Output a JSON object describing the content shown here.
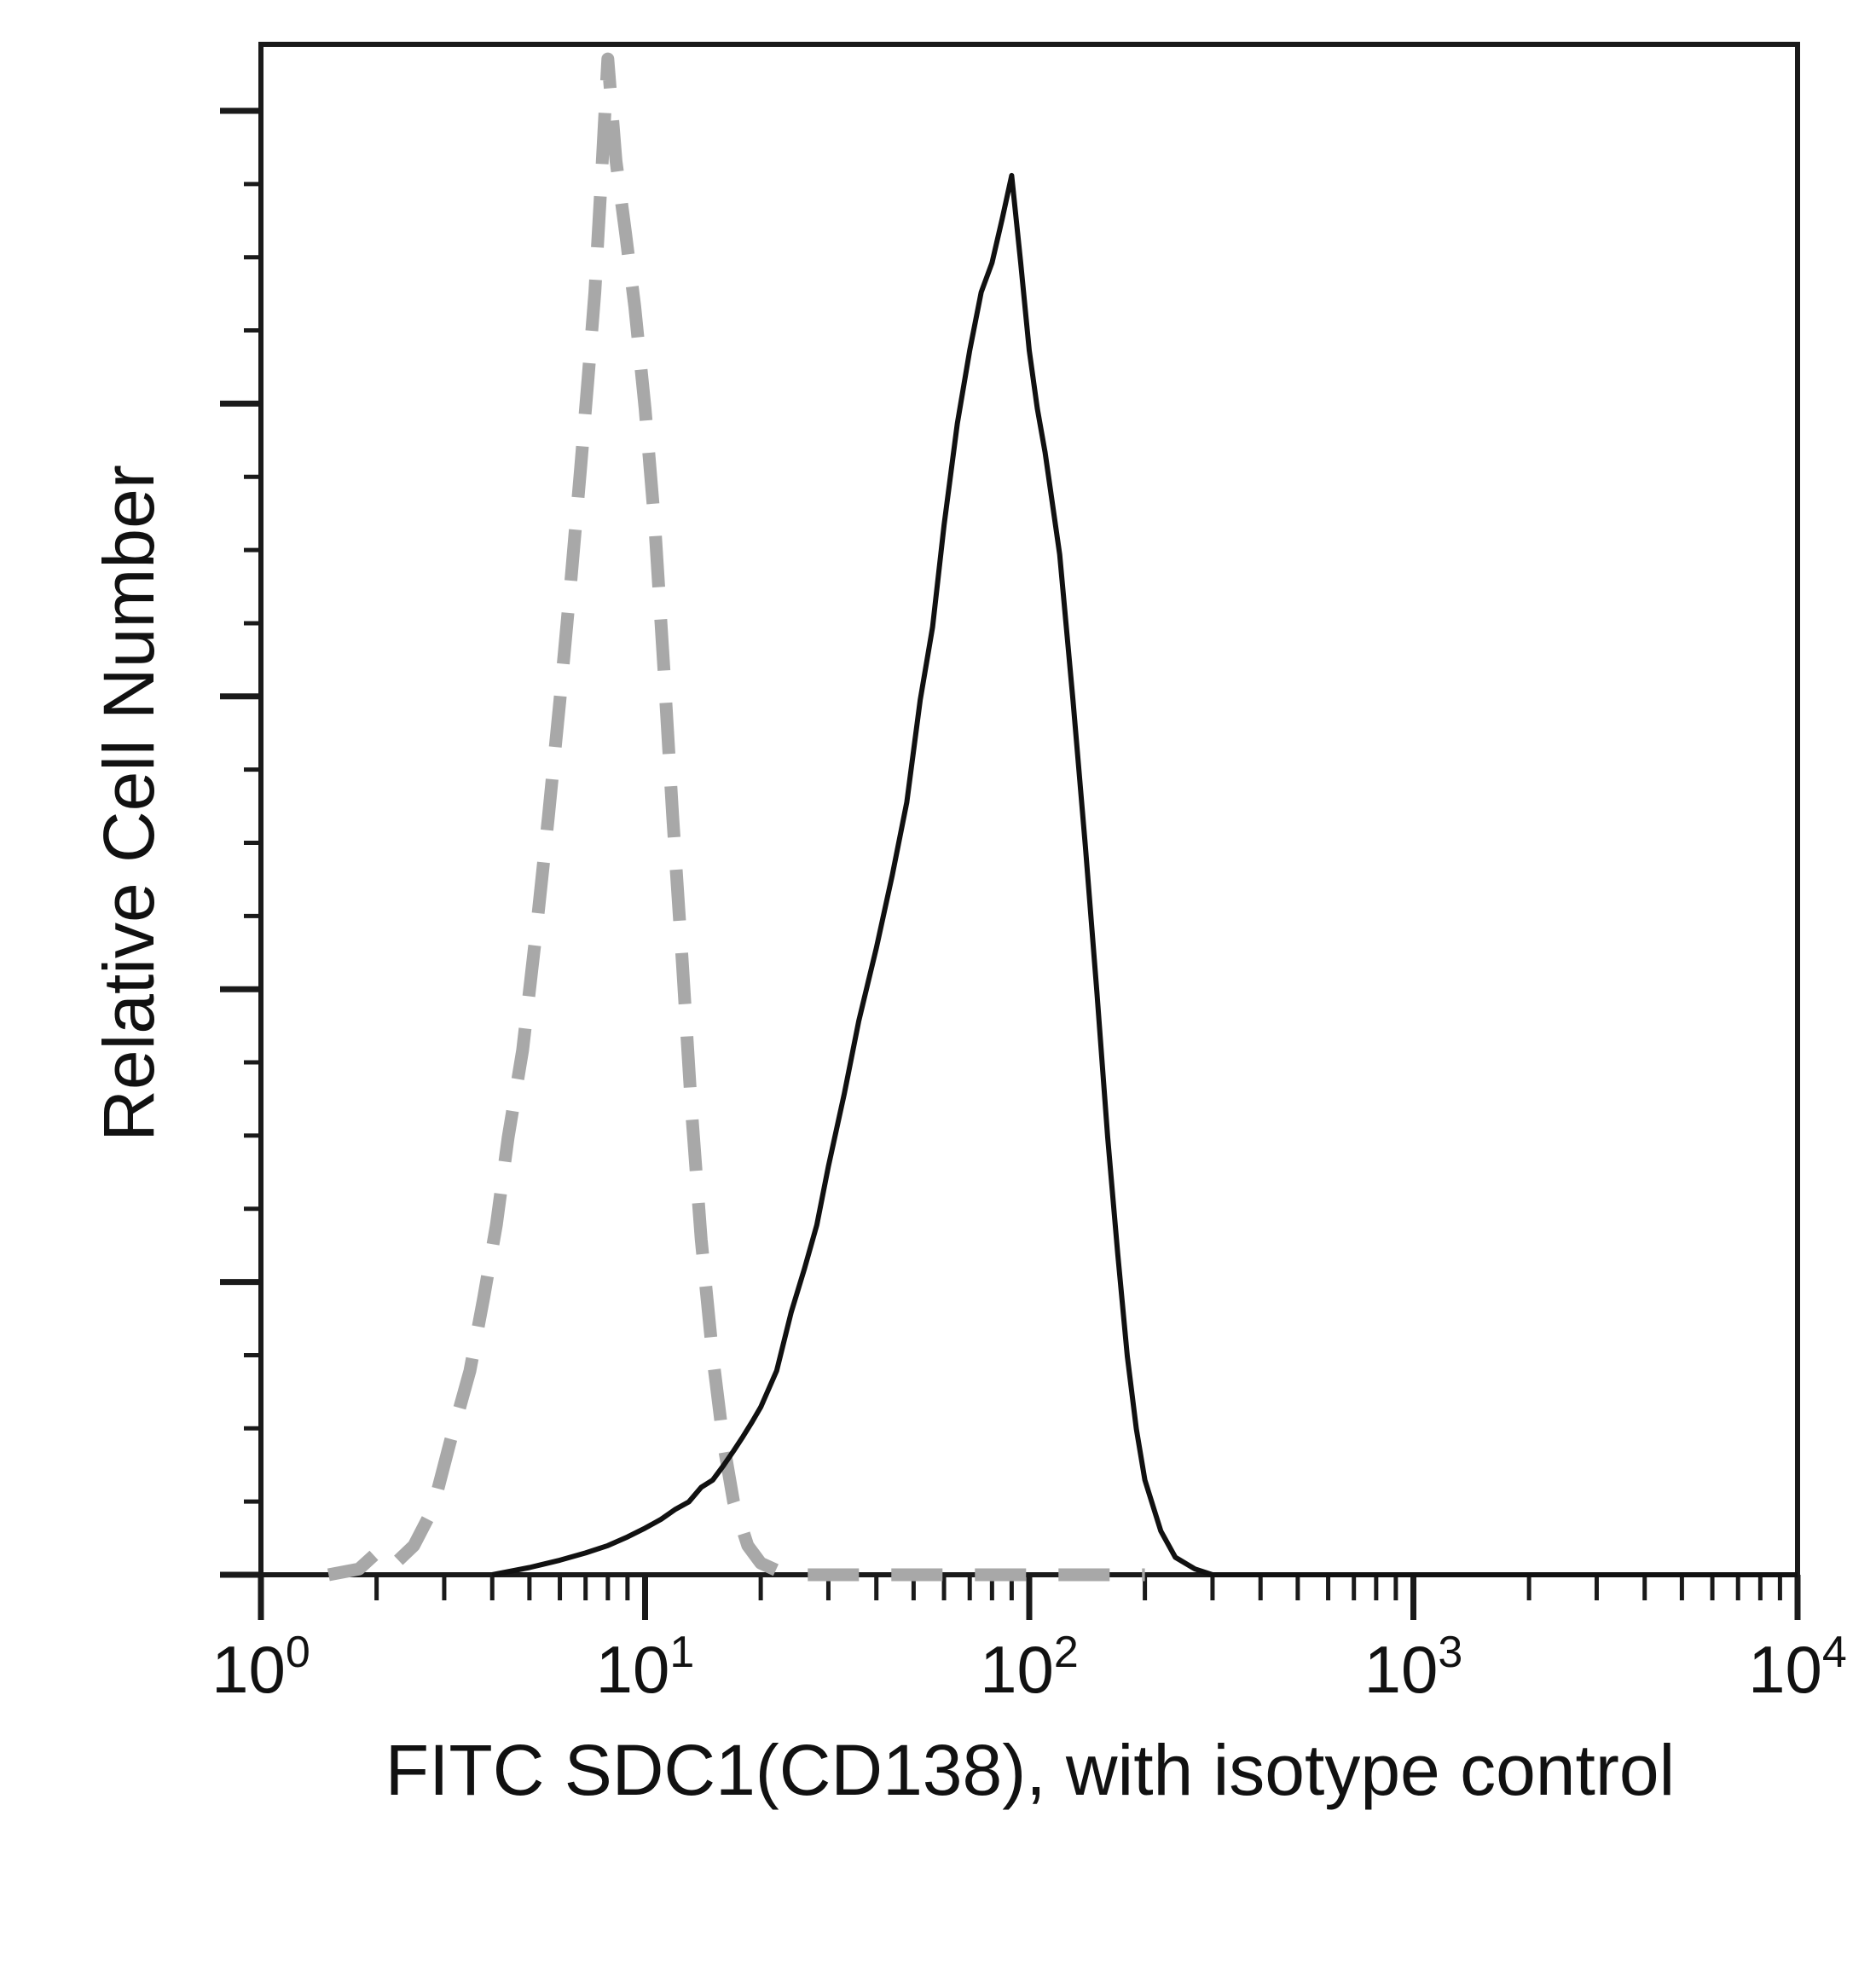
{
  "chart_data": {
    "type": "line",
    "title": "",
    "xlabel": "FITC SDC1(CD138), with isotype control",
    "ylabel": "Relative Cell Number",
    "x_scale": "log",
    "xlim": [
      1,
      10000
    ],
    "ylim": [
      0,
      1.05
    ],
    "y_tick_labels": "none",
    "x_ticks": [
      {
        "value": 1,
        "base": "10",
        "exp": "0"
      },
      {
        "value": 10,
        "base": "10",
        "exp": "1"
      },
      {
        "value": 100,
        "base": "10",
        "exp": "2"
      },
      {
        "value": 1000,
        "base": "10",
        "exp": "3"
      },
      {
        "value": 10000,
        "base": "10",
        "exp": "4"
      }
    ],
    "grid": false,
    "legend": "none",
    "series": [
      {
        "role": "isotype-control",
        "style": "dashed",
        "color": "#a8a8a8",
        "x": [
          1.5,
          1.8,
          2.0,
          2.2,
          2.5,
          2.8,
          3.1,
          3.5,
          3.8,
          4.1,
          4.4,
          4.8,
          5.2,
          5.6,
          6.0,
          6.4,
          6.8,
          7.1,
          7.4,
          7.7,
          8.0,
          8.4,
          8.9,
          9.4,
          10.0,
          10.6,
          11.2,
          11.8,
          12.5,
          13.2,
          14.0,
          15.0,
          16.0,
          17.0,
          18.5,
          20.0,
          22.0,
          25.0,
          30.0,
          50.0,
          100.0,
          200.0
        ],
        "y": [
          0.0,
          0.004,
          0.015,
          0.006,
          0.02,
          0.045,
          0.09,
          0.14,
          0.19,
          0.24,
          0.3,
          0.36,
          0.44,
          0.52,
          0.6,
          0.68,
          0.76,
          0.82,
          0.88,
          0.96,
          1.04,
          0.97,
          0.92,
          0.87,
          0.8,
          0.72,
          0.62,
          0.52,
          0.42,
          0.32,
          0.23,
          0.15,
          0.09,
          0.05,
          0.02,
          0.008,
          0.003,
          0.0,
          0.0,
          0.0,
          0.0,
          0.0
        ]
      },
      {
        "role": "FITC SDC1(CD138)",
        "style": "solid",
        "color": "#111111",
        "x": [
          4.0,
          5.0,
          6.0,
          7.0,
          8.0,
          9.0,
          10.0,
          11.0,
          12.0,
          13.0,
          14.0,
          15.0,
          16.0,
          17.0,
          18.0,
          19.0,
          20.0,
          22.0,
          24.0,
          26.0,
          28.0,
          30.0,
          33.0,
          36.0,
          40.0,
          44.0,
          48.0,
          52.0,
          56.0,
          60.0,
          65.0,
          70.0,
          75.0,
          80.0,
          85.0,
          90.0,
          95.0,
          100.0,
          105.0,
          110.0,
          120.0,
          130.0,
          140.0,
          150.0,
          160.0,
          170.0,
          180.0,
          190.0,
          200.0,
          220.0,
          240.0,
          270.0,
          300.0,
          400.0,
          1000.0,
          10000.0
        ],
        "y": [
          0.0,
          0.005,
          0.01,
          0.015,
          0.02,
          0.026,
          0.032,
          0.038,
          0.045,
          0.05,
          0.06,
          0.065,
          0.075,
          0.085,
          0.095,
          0.105,
          0.115,
          0.14,
          0.18,
          0.21,
          0.24,
          0.28,
          0.33,
          0.38,
          0.43,
          0.48,
          0.53,
          0.6,
          0.65,
          0.72,
          0.79,
          0.84,
          0.88,
          0.9,
          0.93,
          0.96,
          0.9,
          0.84,
          0.8,
          0.77,
          0.7,
          0.6,
          0.5,
          0.4,
          0.3,
          0.22,
          0.15,
          0.1,
          0.065,
          0.03,
          0.012,
          0.004,
          0.0,
          0.0,
          0.0,
          0.0
        ]
      }
    ]
  }
}
